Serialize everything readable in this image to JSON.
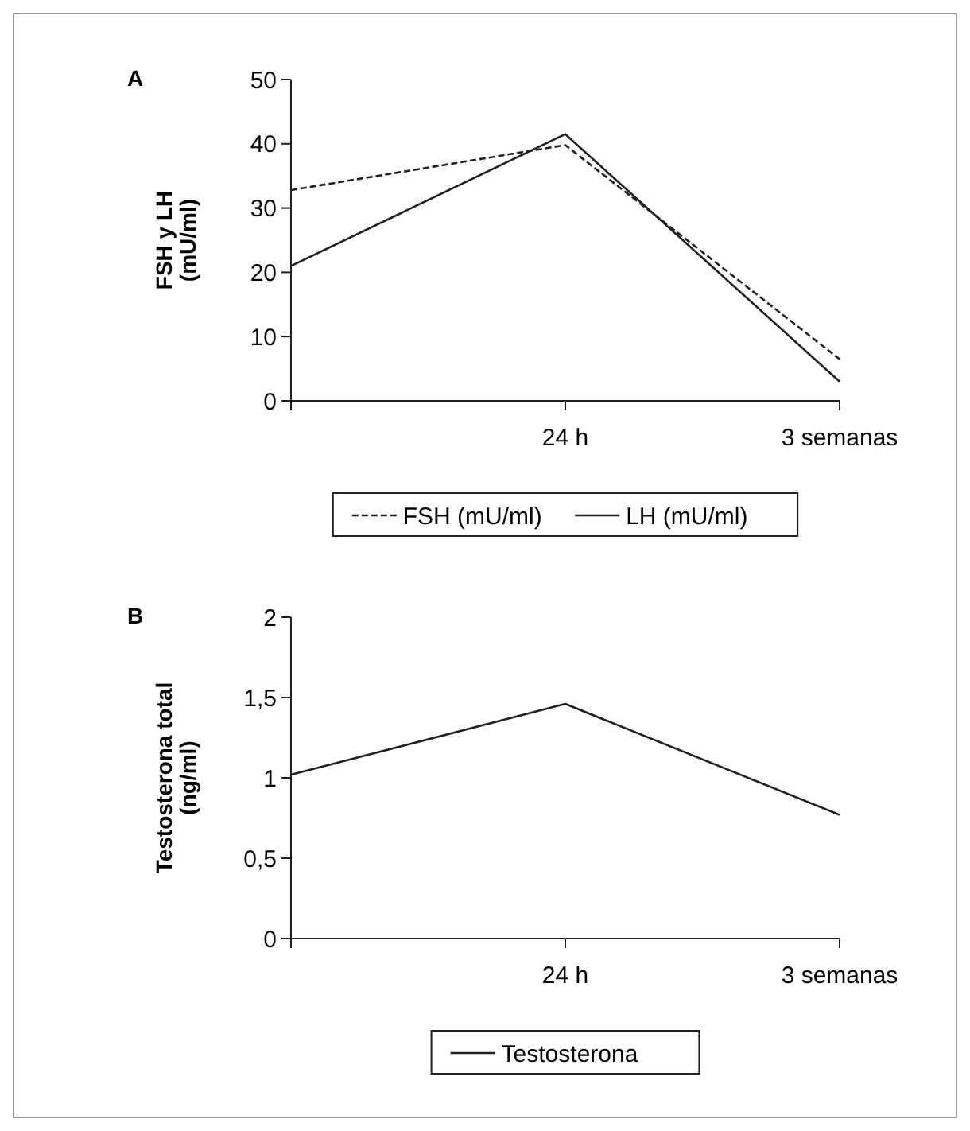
{
  "chart_data": [
    {
      "type": "line",
      "title": "A",
      "ylabel": "FSH y LH\n(mU/ml)",
      "categories": [
        null,
        "24 h",
        "3 semanas"
      ],
      "ylim": [
        0,
        50
      ],
      "yticks": [
        0,
        10,
        20,
        30,
        40,
        50
      ],
      "legend": "bottom",
      "series": [
        {
          "name": "FSH (mU/ml)",
          "color": "#231f20",
          "line_style": "dashed",
          "values": [
            32.8,
            39.8,
            6.5
          ]
        },
        {
          "name": "LH (mU/ml)",
          "color": "#231f20",
          "line_style": "solid",
          "values": [
            21,
            41.5,
            3
          ]
        }
      ]
    },
    {
      "type": "line",
      "title": "B",
      "ylabel": "Testosterona total\n(ng/ml)",
      "categories": [
        null,
        "24 h",
        "3 semanas"
      ],
      "ylim": [
        0,
        2
      ],
      "yticks": [
        0,
        {
          "value": 0.5,
          "label": "0,5"
        },
        1,
        {
          "value": 1.5,
          "label": "1,5"
        },
        2
      ],
      "legend": "bottom",
      "series": [
        {
          "name": "Testosterona",
          "color": "#231f20",
          "line_style": "solid",
          "values": [
            1.02,
            1.46,
            0.77
          ]
        }
      ]
    }
  ]
}
